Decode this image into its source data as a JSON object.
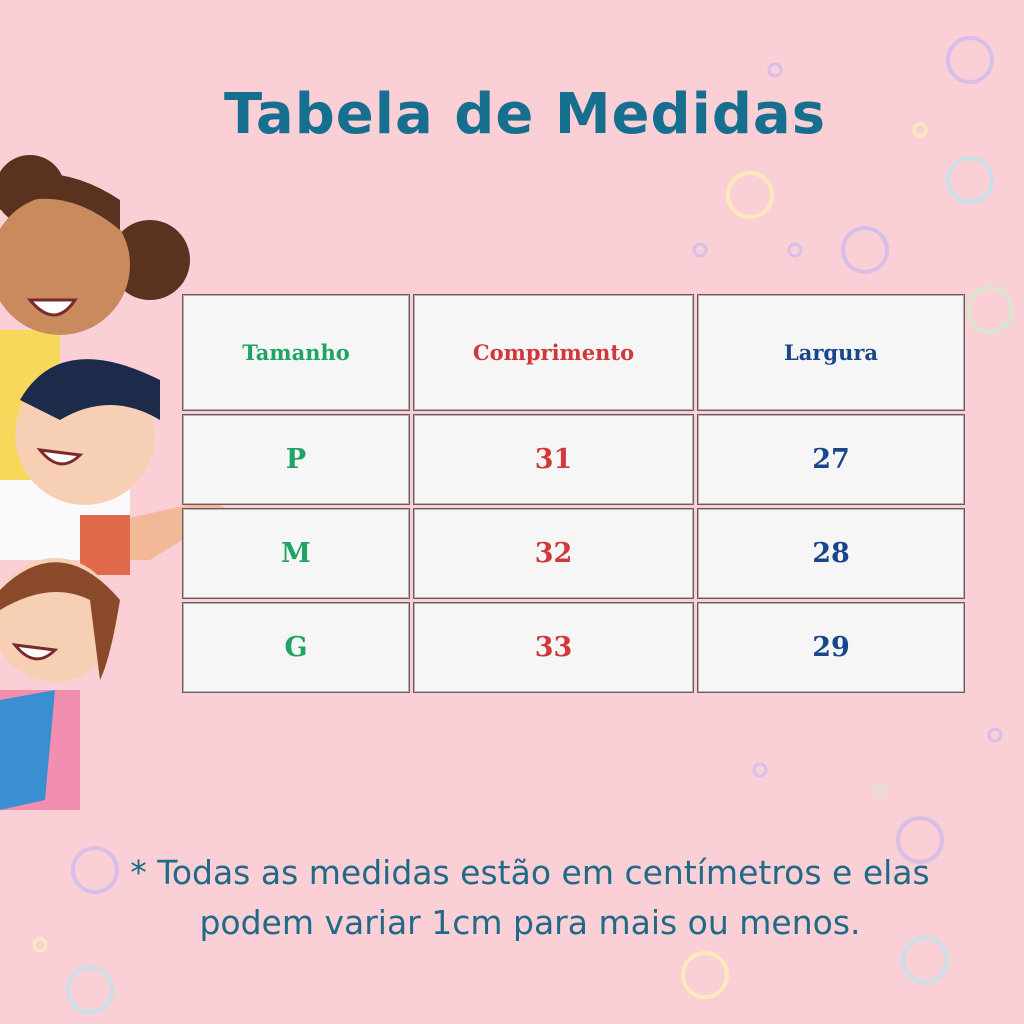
{
  "title": "Tabela de Medidas",
  "table": {
    "headers": [
      "Tamanho",
      "Comprimento",
      "Largura"
    ],
    "rows": [
      [
        "P",
        "31",
        "27"
      ],
      [
        "M",
        "32",
        "28"
      ],
      [
        "G",
        "33",
        "29"
      ]
    ]
  },
  "note_lines": [
    "* Todas as medidas estão em centímetros e elas",
    "podem variar 1cm para mais ou menos."
  ],
  "colors": {
    "background": "#fbcfd6",
    "title": "#176f8f",
    "size_column": "#1fa463",
    "length_column": "#d2373c",
    "width_column": "#17468c"
  }
}
